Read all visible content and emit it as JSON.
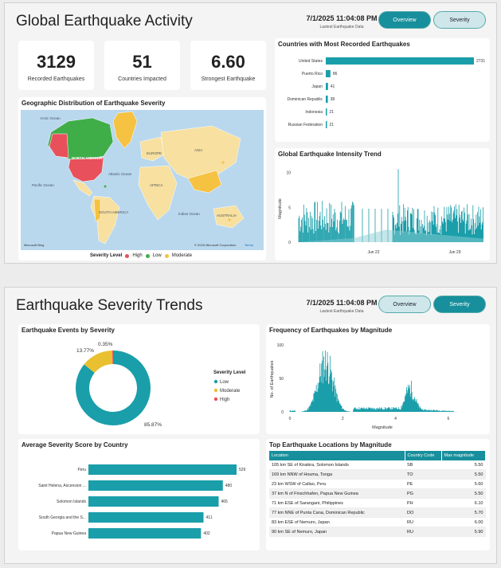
{
  "dashboard1": {
    "title": "Global Earthquake Activity",
    "timestamp": "7/1/2025 11:04:08 PM",
    "timestamp_sub": "Lastest Earthquake Data",
    "nav": {
      "overview": "Overview",
      "severity": "Severity"
    },
    "kpis": [
      {
        "value": "3129",
        "label": "Recorded Earthquakes"
      },
      {
        "value": "51",
        "label": "Countries Impacted"
      },
      {
        "value": "6.60",
        "label": "Strongest Earthquake"
      }
    ],
    "map": {
      "title": "Geographic Distribution of Earthquake Severity",
      "labels": [
        "Arctic Ocean",
        "NORTH AMERICA",
        "Pacific Ocean",
        "Atlantic Ocean",
        "EUROPE",
        "ASIA",
        "AFRICA",
        "SOUTH AMERICA",
        "Indian Ocean",
        "AUSTRALIA"
      ],
      "brand": "Microsoft Bing",
      "copyright": "© 2025 Microsoft Corporation",
      "terms": "Terms",
      "legend_title": "Severity Level",
      "legend": [
        {
          "label": "High",
          "color": "#e8505b"
        },
        {
          "label": "Low",
          "color": "#3fae49"
        },
        {
          "label": "Moderate",
          "color": "#f5c242"
        }
      ]
    },
    "countries_chart": {
      "title": "Countries with Most Recorded Earthquakes",
      "chart_data": {
        "type": "bar",
        "categories": [
          "United States",
          "Puerto Rico",
          "Japan",
          "Dominican Republic",
          "Indonesia",
          "Russian Federation"
        ],
        "values": [
          2731,
          86,
          41,
          38,
          21,
          21
        ]
      }
    },
    "trend_chart": {
      "title": "Global Earthquake Intensity Trend",
      "chart_data": {
        "type": "line",
        "ylabel": "Magnitude",
        "yticks": [
          "0",
          "5",
          "10"
        ],
        "xticks": [
          "Jun 22",
          "Jun 29"
        ]
      }
    }
  },
  "dashboard2": {
    "title": "Earthquake Severity Trends",
    "timestamp": "7/1/2025 11:04:08 PM",
    "timestamp_sub": "Lastest Earthquake Data",
    "nav": {
      "overview": "Overview",
      "severity": "Severity"
    },
    "donut": {
      "title": "Earthquake Events by Severity",
      "legend_title": "Severity Level",
      "chart_data": {
        "type": "pie",
        "categories": [
          "Low",
          "Moderate",
          "High"
        ],
        "values": [
          85.87,
          13.77,
          0.35
        ],
        "labels": [
          "85.87%",
          "13.77%",
          "0.35%"
        ],
        "colors": [
          "#1a9eaa",
          "#e8c030",
          "#e8505b"
        ]
      }
    },
    "histogram": {
      "title": "Frequency of Earthquakes by Magnitude",
      "chart_data": {
        "type": "bar",
        "xlabel": "Magnitude",
        "ylabel": "No. of Earthquakes",
        "yticks": [
          "0",
          "50",
          "100"
        ],
        "xticks": [
          "0",
          "2",
          "4",
          "6"
        ]
      }
    },
    "avg_score": {
      "title": "Average Severity Score by Country",
      "chart_data": {
        "type": "bar",
        "categories": [
          "Peru",
          "Saint Helena, Ascension ...",
          "Solomon Islands",
          "South Georgia and the S...",
          "Papua New Guinea"
        ],
        "values": [
          529,
          480,
          465,
          411,
          402
        ]
      }
    },
    "top_table": {
      "title": "Top Earthquake Locations by Magnitude",
      "columns": [
        "Location",
        "Country Code",
        "Max magnitude"
      ],
      "rows": [
        [
          "105 km SE of Kirakira, Solomon Islands",
          "SB",
          "5.50"
        ],
        [
          "169 km NNW of Houma, Tonga",
          "TO",
          "5.50"
        ],
        [
          "23 km WSW of Callao, Peru",
          "PE",
          "5.60"
        ],
        [
          "37 km N of Finschhafen, Papua New Guinea",
          "PG",
          "5.50"
        ],
        [
          "71 km ESE of Sarangani, Philippines",
          "PH",
          "6.10"
        ],
        [
          "77 km NNE of Punta Cana, Dominican Republic",
          "DO",
          "5.70"
        ],
        [
          "83 km ESE of Nemuro, Japan",
          "RU",
          "6.00"
        ],
        [
          "90 km SE of Nemuro, Japan",
          "RU",
          "5.90"
        ]
      ]
    }
  }
}
